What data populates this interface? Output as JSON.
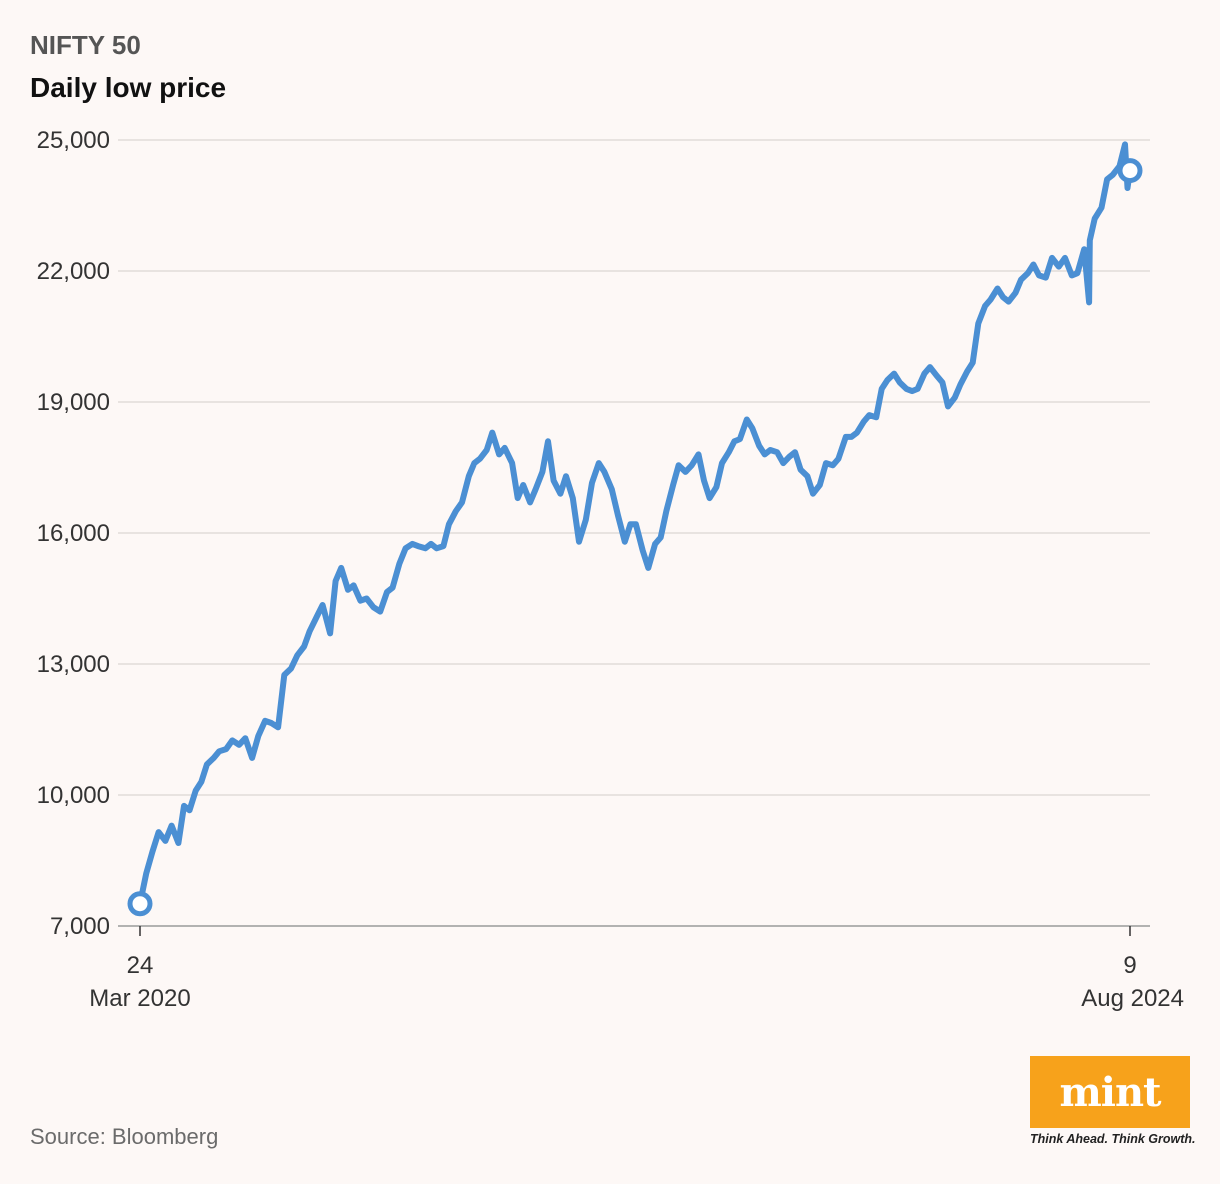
{
  "header": {
    "kicker": "NIFTY 50",
    "title": "Daily low price"
  },
  "footer": {
    "source": "Source: Bloomberg"
  },
  "brand": {
    "logo_text": "mint",
    "tagline": "Think Ahead. Think Growth.",
    "logo_color": "#f7a21b"
  },
  "chart_data": {
    "type": "line",
    "title": "Daily low price",
    "ylim": [
      7000,
      25000
    ],
    "yticks": [
      7000,
      10000,
      13000,
      16000,
      19000,
      22000,
      25000
    ],
    "ytick_labels": [
      "7,000",
      "10,000",
      "13,000",
      "16,000",
      "19,000",
      "22,000",
      "25,000"
    ],
    "xlim": [
      "2020-03-24",
      "2024-08-09"
    ],
    "xtick_labels": [
      {
        "date": "2020-03-24",
        "day": "24",
        "monthyear": "Mar 2020"
      },
      {
        "date": "2024-08-09",
        "day": "9",
        "monthyear": "Aug 2024"
      }
    ],
    "grid": true,
    "line_color": "#4b8fd3",
    "endpoint_markers": true,
    "series": [
      {
        "x": [
          "2020-03-24",
          "2020-04-03",
          "2020-04-13",
          "2020-04-23",
          "2020-05-04",
          "2020-05-14",
          "2020-05-25",
          "2020-06-03",
          "2020-06-12",
          "2020-06-22",
          "2020-07-01",
          "2020-07-10",
          "2020-07-21",
          "2020-07-30",
          "2020-08-10",
          "2020-08-20",
          "2020-08-31",
          "2020-09-10",
          "2020-09-21",
          "2020-10-01",
          "2020-10-12",
          "2020-10-22",
          "2020-11-02",
          "2020-11-12",
          "2020-11-23",
          "2020-12-03",
          "2020-12-14",
          "2020-12-23",
          "2021-01-04",
          "2021-01-13",
          "2021-01-25",
          "2021-02-03",
          "2021-02-12",
          "2021-02-23",
          "2021-03-04",
          "2021-03-15",
          "2021-03-25",
          "2021-04-05",
          "2021-04-16",
          "2021-04-27",
          "2021-05-06",
          "2021-05-17",
          "2021-05-27",
          "2021-06-07",
          "2021-06-16",
          "2021-06-28",
          "2021-07-07",
          "2021-07-16",
          "2021-07-27",
          "2021-08-05",
          "2021-08-16",
          "2021-08-26",
          "2021-09-06",
          "2021-09-15",
          "2021-09-24",
          "2021-10-05",
          "2021-10-14",
          "2021-10-25",
          "2021-11-03",
          "2021-11-15",
          "2021-11-24",
          "2021-12-03",
          "2021-12-14",
          "2021-12-23",
          "2022-01-03",
          "2022-01-12",
          "2022-01-21",
          "2022-02-01",
          "2022-02-10",
          "2022-02-21",
          "2022-03-03",
          "2022-03-14",
          "2022-03-24",
          "2022-04-04",
          "2022-04-13",
          "2022-04-25",
          "2022-05-05",
          "2022-05-16",
          "2022-05-25",
          "2022-06-03",
          "2022-06-14",
          "2022-06-23",
          "2022-07-04",
          "2022-07-13",
          "2022-07-22",
          "2022-08-02",
          "2022-08-11",
          "2022-08-22",
          "2022-09-01",
          "2022-09-12",
          "2022-09-21",
          "2022-09-30",
          "2022-10-11",
          "2022-10-20",
          "2022-10-31",
          "2022-11-09",
          "2022-11-18",
          "2022-11-29",
          "2022-12-08",
          "2022-12-19",
          "2022-12-28",
          "2023-01-06",
          "2023-01-17",
          "2023-01-27",
          "2023-02-06",
          "2023-02-15",
          "2023-02-24",
          "2023-03-07",
          "2023-03-16",
          "2023-03-27",
          "2023-04-06",
          "2023-04-17",
          "2023-04-26",
          "2023-05-08",
          "2023-05-17",
          "2023-05-26",
          "2023-06-06",
          "2023-06-15",
          "2023-06-26",
          "2023-07-05",
          "2023-07-14",
          "2023-07-25",
          "2023-08-03",
          "2023-08-14",
          "2023-08-23",
          "2023-09-01",
          "2023-09-12",
          "2023-09-21",
          "2023-10-02",
          "2023-10-11",
          "2023-10-20",
          "2023-10-31",
          "2023-11-09",
          "2023-11-20",
          "2023-11-29",
          "2023-12-08",
          "2023-12-19",
          "2023-12-28",
          "2024-01-08",
          "2024-01-17",
          "2024-01-26",
          "2024-02-06",
          "2024-02-15",
          "2024-02-26",
          "2024-03-06",
          "2024-03-15",
          "2024-03-26",
          "2024-04-05",
          "2024-04-16",
          "2024-04-26",
          "2024-05-07",
          "2024-05-16",
          "2024-05-27",
          "2024-06-04",
          "2024-06-05",
          "2024-06-13",
          "2024-06-24",
          "2024-07-03",
          "2024-07-12",
          "2024-07-23",
          "2024-08-01",
          "2024-08-05",
          "2024-08-09"
        ],
        "values": [
          7510,
          8200,
          8700,
          9150,
          8950,
          9300,
          8900,
          9750,
          9650,
          10100,
          10300,
          10700,
          10850,
          11000,
          11050,
          11250,
          11150,
          11300,
          10850,
          11350,
          11700,
          11650,
          11550,
          12750,
          12900,
          13200,
          13400,
          13750,
          14100,
          14350,
          13700,
          14900,
          15200,
          14700,
          14800,
          14450,
          14500,
          14300,
          14200,
          14650,
          14750,
          15300,
          15650,
          15750,
          15700,
          15650,
          15750,
          15650,
          15700,
          16200,
          16500,
          16700,
          17300,
          17600,
          17700,
          17900,
          18300,
          17800,
          17950,
          17600,
          16800,
          17100,
          16700,
          17000,
          17400,
          18100,
          17200,
          16900,
          17300,
          16800,
          15800,
          16300,
          17150,
          17600,
          17400,
          17000,
          16400,
          15800,
          16200,
          16200,
          15600,
          15200,
          15750,
          15900,
          16500,
          17100,
          17550,
          17400,
          17550,
          17800,
          17200,
          16800,
          17050,
          17600,
          17850,
          18100,
          18150,
          18600,
          18400,
          18000,
          17800,
          17900,
          17850,
          17600,
          17750,
          17850,
          17450,
          17300,
          16900,
          17100,
          17600,
          17550,
          17700,
          18200,
          18200,
          18300,
          18550,
          18700,
          18650,
          19300,
          19500,
          19650,
          19450,
          19300,
          19250,
          19300,
          19650,
          19800,
          19600,
          19450,
          18900,
          19100,
          19400,
          19700,
          19900,
          20800,
          21200,
          21350,
          21600,
          21400,
          21300,
          21500,
          21800,
          21950,
          22150,
          21900,
          21850,
          22300,
          22100,
          22300,
          21900,
          21950,
          22500,
          21280,
          22700,
          23200,
          23450,
          24100,
          24200,
          24400,
          24900,
          23900,
          24300
        ]
      }
    ]
  }
}
